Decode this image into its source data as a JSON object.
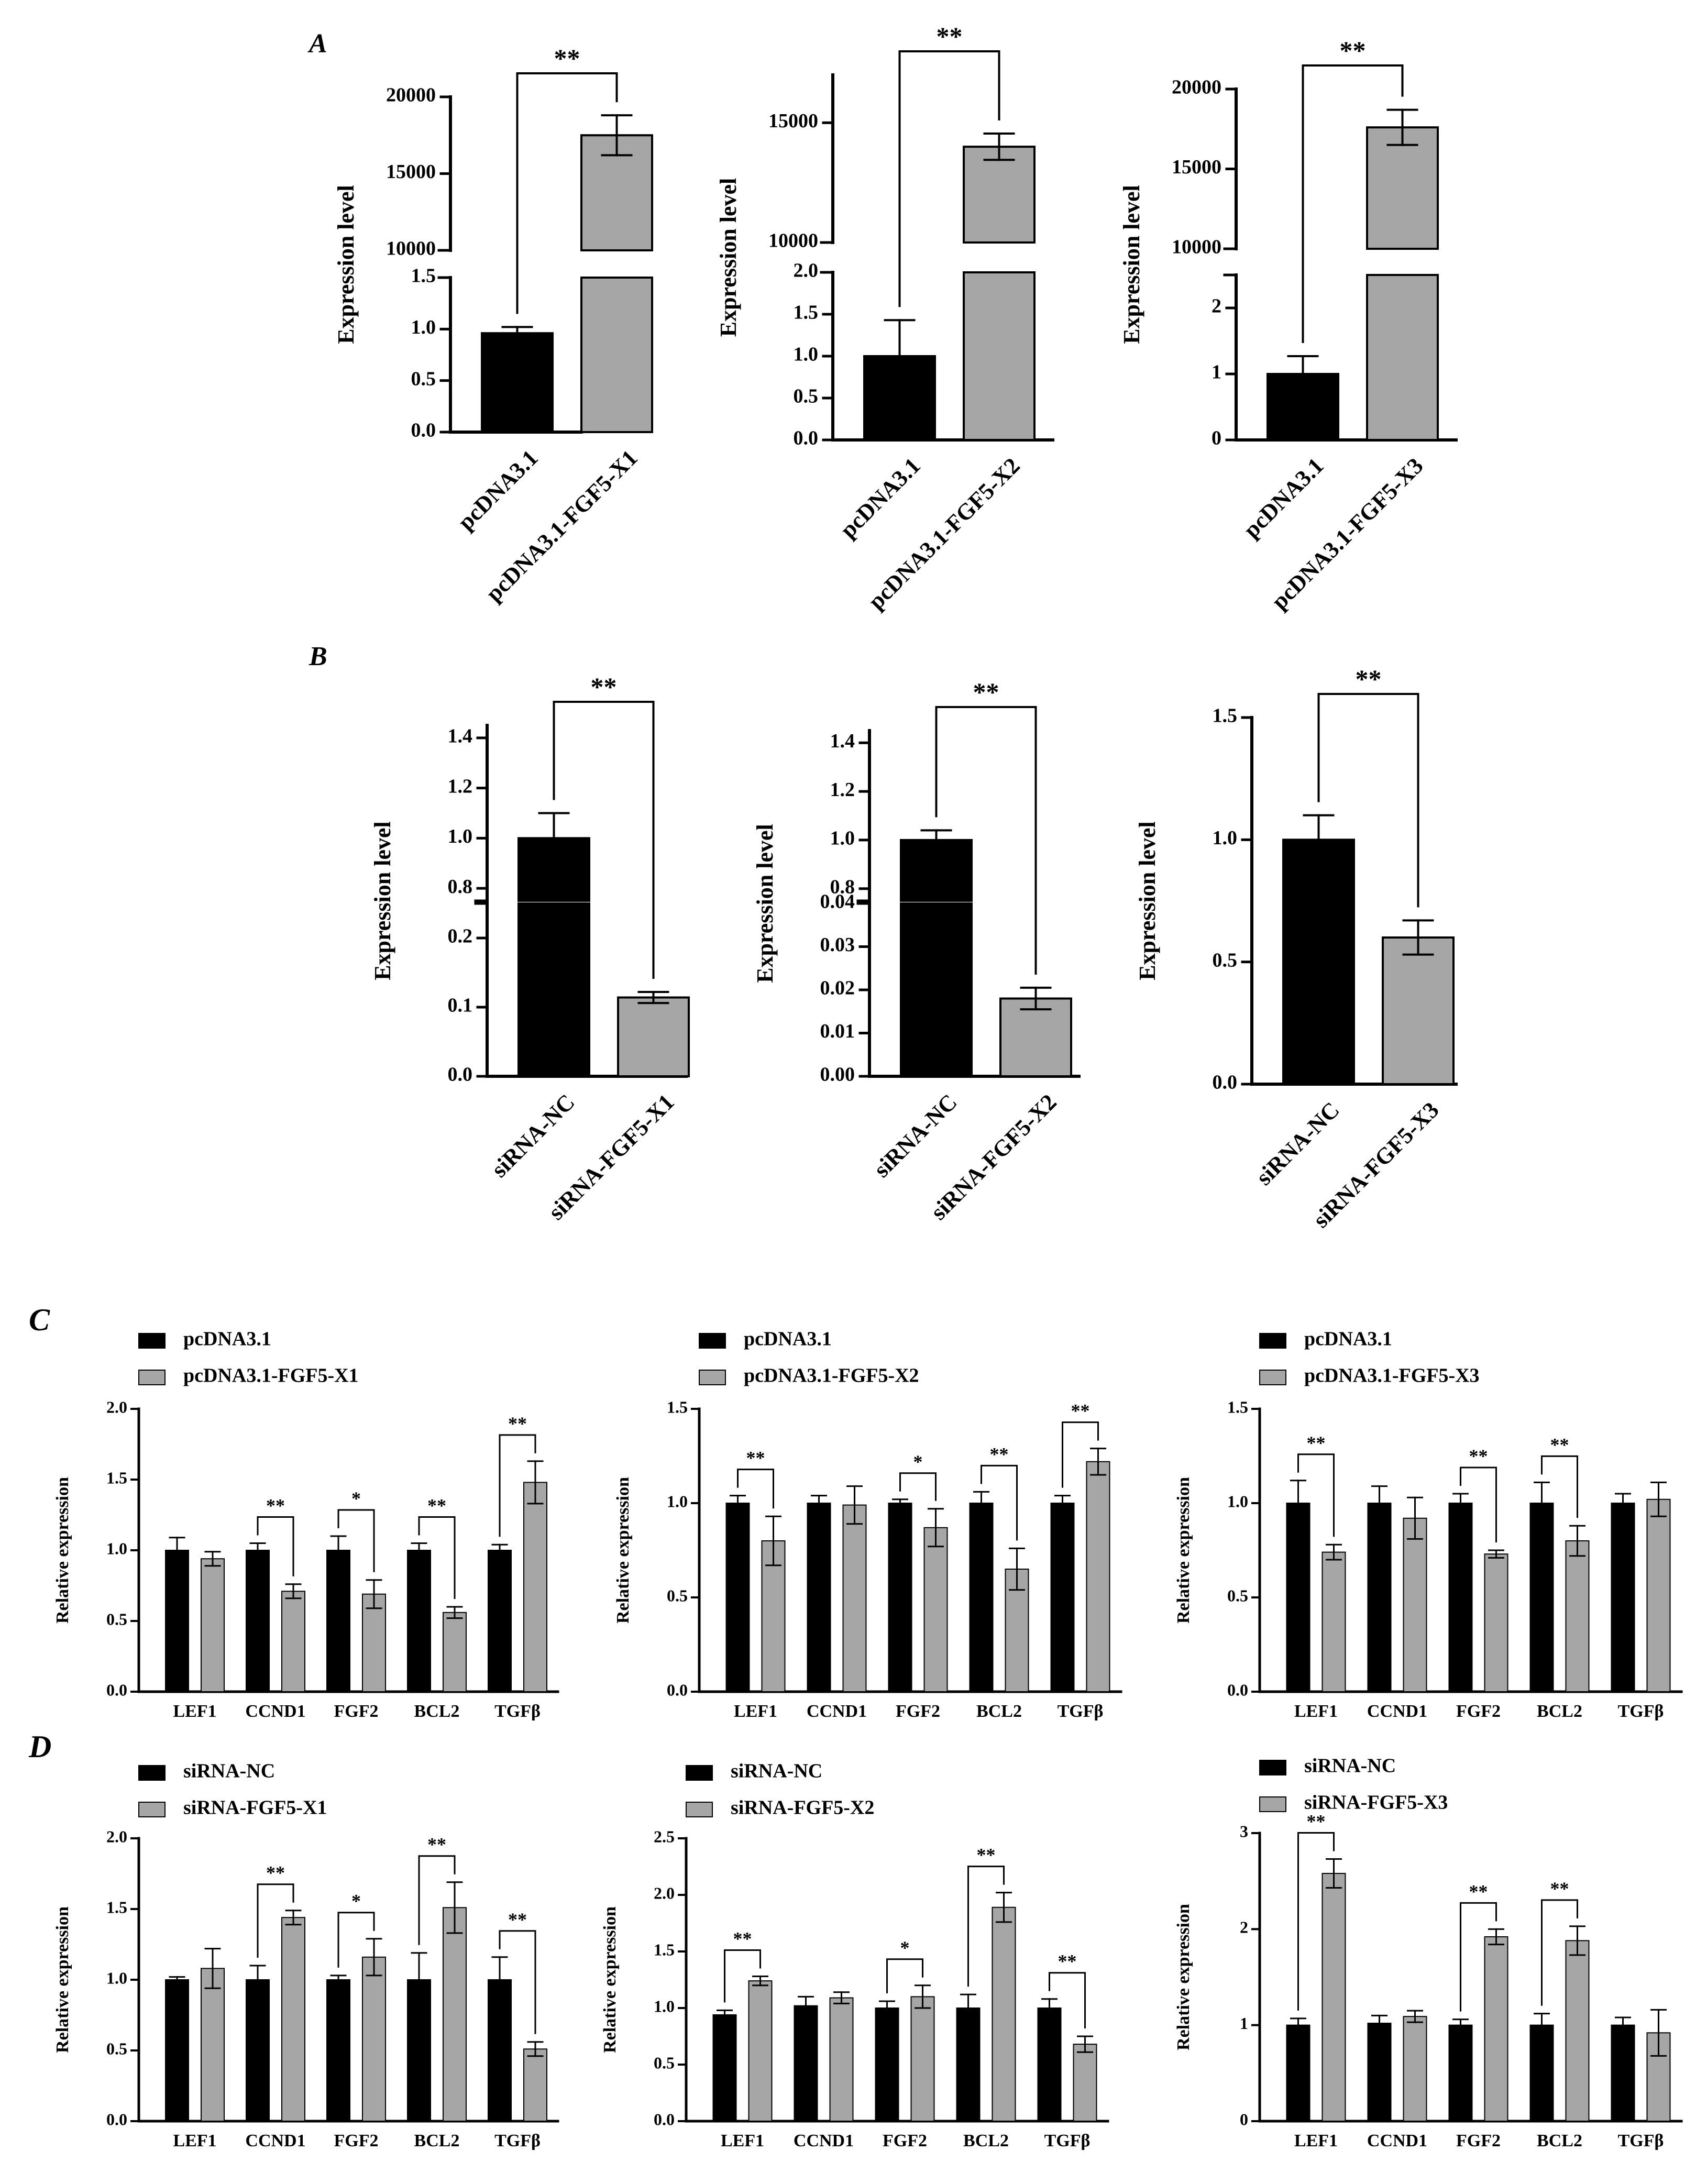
{
  "figure": {
    "colors": {
      "dark": "#000000",
      "light": "#a6a6a6",
      "axis": "#000000"
    },
    "panels": [
      {
        "label": "A",
        "charts": [
          {
            "type": "bar",
            "title": "",
            "ylabel": "Expression level",
            "categories": [
              "pcDNA3.1",
              "pcDNA3.1-FGF5-X1"
            ],
            "values": [
              0.96,
              17500
            ],
            "errors": [
              0.06,
              1300
            ],
            "broken_axis": {
              "lower": {
                "ylim": [
                  0,
                  1.5
                ],
                "ticks": [
                  "0.0",
                  "0.5",
                  "1.0",
                  "1.5"
                ]
              },
              "upper": {
                "ylim": [
                  10000,
                  20000
                ],
                "ticks": [
                  "10000",
                  "15000",
                  "20000"
                ]
              }
            },
            "significance": [
              {
                "a": 0,
                "b": 1,
                "label": "**"
              }
            ]
          },
          {
            "type": "bar",
            "title": "",
            "ylabel": "Expression level",
            "categories": [
              "pcDNA3.1",
              "pcDNA3.1-FGF5-X2"
            ],
            "values": [
              1.0,
              14000
            ],
            "errors": [
              0.43,
              550
            ],
            "broken_axis": {
              "lower": {
                "ylim": [
                  0,
                  2.0
                ],
                "ticks": [
                  "0.0",
                  "0.5",
                  "1.0",
                  "1.5",
                  "2.0"
                ]
              },
              "upper": {
                "ylim": [
                  10000,
                  17000
                ],
                "ticks": [
                  "10000",
                  "15000"
                ]
              }
            },
            "significance": [
              {
                "a": 0,
                "b": 1,
                "label": "**"
              }
            ]
          },
          {
            "type": "bar",
            "title": "",
            "ylabel": "Expression level",
            "categories": [
              "pcDNA3.1",
              "pcDNA3.1-FGF5-X3"
            ],
            "values": [
              1.0,
              17600
            ],
            "errors": [
              0.27,
              1100
            ],
            "broken_axis": {
              "lower": {
                "ylim": [
                  0,
                  2.5
                ],
                "ticks": [
                  "0",
                  "1",
                  "2"
                ]
              },
              "upper": {
                "ylim": [
                  10000,
                  20000
                ],
                "ticks": [
                  "10000",
                  "15000",
                  "20000"
                ]
              }
            },
            "significance": [
              {
                "a": 0,
                "b": 1,
                "label": "**"
              }
            ]
          }
        ]
      },
      {
        "label": "B",
        "charts": [
          {
            "type": "bar",
            "title": "",
            "ylabel": "Expression level",
            "categories": [
              "siRNA-NC",
              "siRNA-FGF5-X1"
            ],
            "values": [
              1.0,
              0.114
            ],
            "errors": [
              0.1,
              0.008
            ],
            "broken_axis": {
              "lower": {
                "ylim": [
                  0,
                  0.25
                ],
                "ticks": [
                  "0.0",
                  "0.1",
                  "0.2"
                ]
              },
              "upper": {
                "ylim": [
                  0.75,
                  1.45
                ],
                "ticks": [
                  "0.8",
                  "1.0",
                  "1.2",
                  "1.4"
                ]
              }
            },
            "significance": [
              {
                "a": 0,
                "b": 1,
                "label": "**"
              }
            ]
          },
          {
            "type": "bar",
            "title": "",
            "ylabel": "Expression level",
            "categories": [
              "siRNA-NC",
              "siRNA-FGF5-X2"
            ],
            "values": [
              1.0,
              0.018
            ],
            "errors": [
              0.04,
              0.0025
            ],
            "broken_axis": {
              "lower": {
                "ylim": [
                  0,
                  0.04
                ],
                "ticks": [
                  "0.00",
                  "0.01",
                  "0.02",
                  "0.03",
                  "0.04"
                ]
              },
              "upper": {
                "ylim": [
                  0.75,
                  1.45
                ],
                "ticks": [
                  "0.8",
                  "1.0",
                  "1.2",
                  "1.4"
                ]
              }
            },
            "significance": [
              {
                "a": 0,
                "b": 1,
                "label": "**"
              }
            ]
          },
          {
            "type": "bar",
            "title": "",
            "ylabel": "Expression level",
            "categories": [
              "siRNA-NC",
              "siRNA-FGF5-X3"
            ],
            "values": [
              1.0,
              0.6
            ],
            "errors": [
              0.1,
              0.07
            ],
            "ylim": [
              0,
              1.5
            ],
            "yticks": [
              "0.0",
              "0.5",
              "1.0",
              "1.5"
            ],
            "significance": [
              {
                "a": 0,
                "b": 1,
                "label": "**"
              }
            ]
          }
        ]
      },
      {
        "label": "C",
        "charts": [
          {
            "type": "bar",
            "ylabel": "Relative expression",
            "categories": [
              "LEF1",
              "CCND1",
              "FGF2",
              "BCL2",
              "TGFβ"
            ],
            "ylim": [
              0,
              2.0
            ],
            "yticks": [
              "0.0",
              "0.5",
              "1.0",
              "1.5",
              "2.0"
            ],
            "series": [
              {
                "name": "pcDNA3.1",
                "color": "#000000",
                "values": [
                  1.0,
                  1.0,
                  1.0,
                  1.0,
                  1.0
                ],
                "errors": [
                  0.09,
                  0.05,
                  0.1,
                  0.05,
                  0.04
                ]
              },
              {
                "name": "pcDNA3.1-FGF5-X1",
                "color": "#a6a6a6",
                "values": [
                  0.94,
                  0.71,
                  0.69,
                  0.56,
                  1.48
                ],
                "errors": [
                  0.05,
                  0.05,
                  0.1,
                  0.04,
                  0.15
                ]
              }
            ],
            "significance": [
              {
                "cat": 1,
                "label": "**"
              },
              {
                "cat": 2,
                "label": "*"
              },
              {
                "cat": 3,
                "label": "**"
              },
              {
                "cat": 4,
                "label": "**"
              }
            ]
          },
          {
            "type": "bar",
            "ylabel": "Relative expression",
            "categories": [
              "LEF1",
              "CCND1",
              "FGF2",
              "BCL2",
              "TGFβ"
            ],
            "ylim": [
              0,
              1.5
            ],
            "yticks": [
              "0.0",
              "0.5",
              "1.0",
              "1.5"
            ],
            "series": [
              {
                "name": "pcDNA3.1",
                "color": "#000000",
                "values": [
                  1.0,
                  1.0,
                  1.0,
                  1.0,
                  1.0
                ],
                "errors": [
                  0.04,
                  0.04,
                  0.02,
                  0.06,
                  0.04
                ]
              },
              {
                "name": "pcDNA3.1-FGF5-X2",
                "color": "#a6a6a6",
                "values": [
                  0.8,
                  0.99,
                  0.87,
                  0.65,
                  1.22
                ],
                "errors": [
                  0.13,
                  0.1,
                  0.1,
                  0.11,
                  0.07
                ]
              }
            ],
            "significance": [
              {
                "cat": 0,
                "label": "**"
              },
              {
                "cat": 2,
                "label": "*"
              },
              {
                "cat": 3,
                "label": "**"
              },
              {
                "cat": 4,
                "label": "**"
              }
            ]
          },
          {
            "type": "bar",
            "ylabel": "Relative expression",
            "categories": [
              "LEF1",
              "CCND1",
              "FGF2",
              "BCL2",
              "TGFβ"
            ],
            "ylim": [
              0,
              1.5
            ],
            "yticks": [
              "0.0",
              "0.5",
              "1.0",
              "1.5"
            ],
            "series": [
              {
                "name": "pcDNA3.1",
                "color": "#000000",
                "values": [
                  1.0,
                  1.0,
                  1.0,
                  1.0,
                  1.0
                ],
                "errors": [
                  0.12,
                  0.09,
                  0.05,
                  0.11,
                  0.05
                ]
              },
              {
                "name": "pcDNA3.1-FGF5-X3",
                "color": "#a6a6a6",
                "values": [
                  0.74,
                  0.92,
                  0.73,
                  0.8,
                  1.02
                ],
                "errors": [
                  0.04,
                  0.11,
                  0.02,
                  0.08,
                  0.09
                ]
              }
            ],
            "significance": [
              {
                "cat": 0,
                "label": "**"
              },
              {
                "cat": 2,
                "label": "**"
              },
              {
                "cat": 3,
                "label": "**"
              }
            ]
          }
        ]
      },
      {
        "label": "D",
        "charts": [
          {
            "type": "bar",
            "ylabel": "Relative expression",
            "categories": [
              "LEF1",
              "CCND1",
              "FGF2",
              "BCL2",
              "TGFβ"
            ],
            "ylim": [
              0,
              2.0
            ],
            "yticks": [
              "0.0",
              "0.5",
              "1.0",
              "1.5",
              "2.0"
            ],
            "series": [
              {
                "name": "siRNA-NC",
                "color": "#000000",
                "values": [
                  1.0,
                  1.0,
                  1.0,
                  1.0,
                  1.0
                ],
                "errors": [
                  0.02,
                  0.1,
                  0.03,
                  0.19,
                  0.16
                ]
              },
              {
                "name": "siRNA-FGF5-X1",
                "color": "#a6a6a6",
                "values": [
                  1.08,
                  1.44,
                  1.16,
                  1.51,
                  0.51
                ],
                "errors": [
                  0.14,
                  0.05,
                  0.13,
                  0.18,
                  0.05
                ]
              }
            ],
            "significance": [
              {
                "cat": 1,
                "label": "**"
              },
              {
                "cat": 2,
                "label": "*"
              },
              {
                "cat": 3,
                "label": "**"
              },
              {
                "cat": 4,
                "label": "**"
              }
            ]
          },
          {
            "type": "bar",
            "ylabel": "Relative expression",
            "categories": [
              "LEF1",
              "CCND1",
              "FGF2",
              "BCL2",
              "TGFβ"
            ],
            "ylim": [
              0,
              2.5
            ],
            "yticks": [
              "0.0",
              "0.5",
              "1.0",
              "1.5",
              "2.0",
              "2.5"
            ],
            "series": [
              {
                "name": "siRNA-NC",
                "color": "#000000",
                "values": [
                  0.94,
                  1.02,
                  1.0,
                  1.0,
                  1.0
                ],
                "errors": [
                  0.04,
                  0.08,
                  0.06,
                  0.12,
                  0.08
                ]
              },
              {
                "name": "siRNA-FGF5-X2",
                "color": "#a6a6a6",
                "values": [
                  1.24,
                  1.09,
                  1.1,
                  1.89,
                  0.68
                ],
                "errors": [
                  0.04,
                  0.05,
                  0.1,
                  0.13,
                  0.07
                ]
              }
            ],
            "significance": [
              {
                "cat": 0,
                "label": "**"
              },
              {
                "cat": 2,
                "label": "*"
              },
              {
                "cat": 3,
                "label": "**"
              },
              {
                "cat": 4,
                "label": "**"
              }
            ]
          },
          {
            "type": "bar",
            "ylabel": "Relative expression",
            "categories": [
              "LEF1",
              "CCND1",
              "FGF2",
              "BCL2",
              "TGFβ"
            ],
            "ylim": [
              0,
              3.0
            ],
            "yticks": [
              "0",
              "1",
              "2",
              "3"
            ],
            "series": [
              {
                "name": "siRNA-NC",
                "color": "#000000",
                "values": [
                  1.0,
                  1.02,
                  1.0,
                  1.0,
                  1.0
                ],
                "errors": [
                  0.07,
                  0.08,
                  0.06,
                  0.12,
                  0.08
                ]
              },
              {
                "name": "siRNA-FGF5-X3",
                "color": "#a6a6a6",
                "values": [
                  2.58,
                  1.09,
                  1.92,
                  1.88,
                  0.92
                ],
                "errors": [
                  0.15,
                  0.06,
                  0.08,
                  0.15,
                  0.24
                ]
              }
            ],
            "significance": [
              {
                "cat": 0,
                "label": "**"
              },
              {
                "cat": 2,
                "label": "**"
              },
              {
                "cat": 3,
                "label": "**"
              }
            ]
          }
        ]
      }
    ]
  }
}
